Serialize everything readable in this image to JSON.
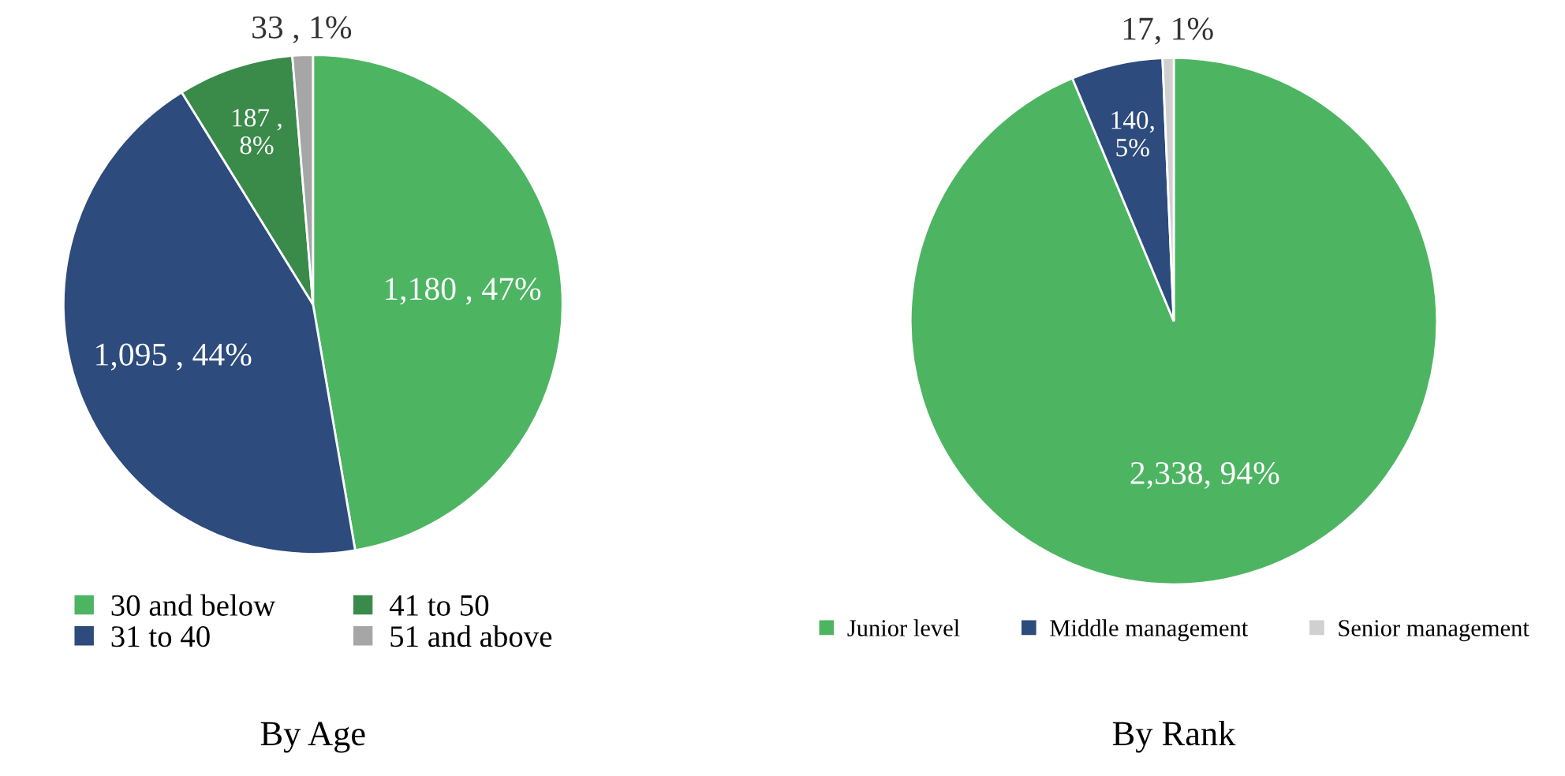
{
  "chart_data": [
    {
      "type": "pie",
      "title": "By Age",
      "categories": [
        "30 and below",
        "31 to 40",
        "41 to 50",
        "51 and above"
      ],
      "values": [
        1180,
        1095,
        187,
        33
      ],
      "colors": [
        "#4db562",
        "#2d4b7c",
        "#3a8a4a",
        "#a6a6a6"
      ],
      "value_labels": [
        "1,180 , 47%",
        "1,095 , 44%",
        "187 , 8%",
        "33 , 1%"
      ],
      "legend": "bottom"
    },
    {
      "type": "pie",
      "title": "By Rank",
      "categories": [
        "Junior level",
        "Middle management",
        "Senior management"
      ],
      "values": [
        2338,
        140,
        17
      ],
      "colors": [
        "#4db562",
        "#2d4b7c",
        "#d0d0d0"
      ],
      "value_labels": [
        "2,338, 94%",
        "140, 5%",
        "17, 1%"
      ],
      "legend": "bottom"
    }
  ]
}
